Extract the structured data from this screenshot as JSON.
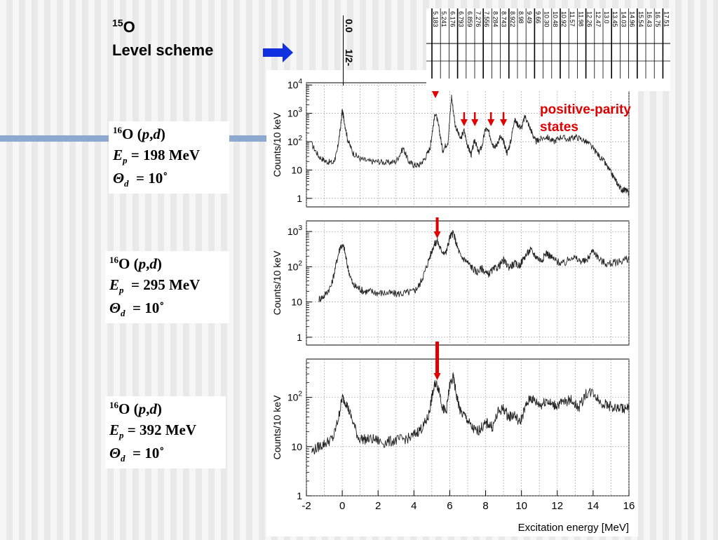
{
  "heading": {
    "nucleus_mass": "15",
    "nucleus_symbol": "O",
    "subtitle": "Level scheme"
  },
  "level_scheme": {
    "ground_energy": "0.0",
    "ground_spin": "1/2-",
    "level_energies": [
      "5.183",
      "5.241",
      "6.176",
      "6.793",
      "6.859",
      "7.276",
      "7.556",
      "8.284",
      "8.743",
      "8.922",
      "8.98",
      "9.49",
      "9.66",
      "10.30",
      "10.48",
      "10.92",
      "11.57",
      "11.98",
      "12.26",
      "12.47",
      "13.0",
      "13.45",
      "14.03",
      "14.96",
      "15.54",
      "16.43",
      "16.75",
      "17.51"
    ]
  },
  "annotation": {
    "line1": "positive-parity",
    "line2": "states"
  },
  "reactions": [
    {
      "mass": "16",
      "target": "O",
      "reaction_p": "p",
      "reaction_d": "d",
      "e_label": "E",
      "e_sub": "p",
      "e_value": "= 198 MeV",
      "theta_label": "Θ",
      "theta_sub": "d",
      "theta_value": "= 10˚"
    },
    {
      "mass": "16",
      "target": "O",
      "reaction_p": "p",
      "reaction_d": "d",
      "e_label": "E",
      "e_sub": "p",
      "e_value": "= 295 MeV",
      "theta_label": "Θ",
      "theta_sub": "d",
      "theta_value": "= 10˚"
    },
    {
      "mass": "16",
      "target": "O",
      "reaction_p": "p",
      "reaction_d": "d",
      "e_label": "E",
      "e_sub": "p",
      "e_value": "= 392 MeV",
      "theta_label": "Θ",
      "theta_sub": "d",
      "theta_value": "= 10˚"
    }
  ],
  "colors": {
    "arrow_blue": "#1030e0",
    "arrow_red": "#e00000",
    "stripe": "#8ea9cf"
  },
  "chart_data": [
    {
      "type": "line",
      "title": "",
      "xlabel": "",
      "ylabel": "Counts/10 keV",
      "xlim": [
        -2,
        16
      ],
      "ylim": [
        0.5,
        12000
      ],
      "yscale": "log",
      "ytick_labels": [
        "1",
        "10",
        "10^2",
        "10^3",
        "10^4"
      ],
      "grid": true,
      "arrows_x": [
        5.2,
        6.8,
        7.4,
        8.3,
        9.0
      ],
      "series": [
        {
          "x": [
            -1.7,
            -1.3,
            -0.9,
            -0.5,
            -0.3,
            -0.1,
            0.0,
            0.1,
            0.3,
            0.6,
            1.0,
            1.5,
            2.0,
            2.5,
            3.0,
            3.4,
            3.7,
            4.0,
            4.3,
            4.6,
            4.9,
            5.0,
            5.2,
            5.4,
            5.6,
            5.9,
            6.1,
            6.3,
            6.6,
            6.8,
            7.0,
            7.2,
            7.4,
            7.6,
            7.8,
            8.0,
            8.2,
            8.4,
            8.6,
            8.8,
            9.0,
            9.2,
            9.4,
            9.6,
            9.8,
            10.0,
            10.2,
            10.4,
            10.6,
            10.8,
            11.0,
            11.4,
            11.8,
            12.2,
            12.6,
            13.0,
            13.4,
            13.8,
            14.2,
            14.6,
            14.9,
            15.2,
            15.4,
            15.6,
            15.8,
            16.0
          ],
          "y": [
            80,
            30,
            20,
            18,
            40,
            300,
            1300,
            600,
            120,
            40,
            25,
            20,
            20,
            18,
            20,
            60,
            20,
            15,
            15,
            25,
            60,
            180,
            1100,
            300,
            50,
            100,
            4000,
            400,
            120,
            250,
            70,
            35,
            120,
            40,
            70,
            300,
            200,
            80,
            70,
            150,
            100,
            40,
            100,
            600,
            400,
            300,
            800,
            400,
            200,
            100,
            120,
            150,
            100,
            150,
            120,
            150,
            120,
            80,
            40,
            20,
            10,
            5,
            3,
            2,
            2,
            1.5
          ]
        }
      ]
    },
    {
      "type": "line",
      "title": "",
      "xlabel": "",
      "ylabel": "Counts/10 keV",
      "xlim": [
        -2,
        16
      ],
      "ylim": [
        0.6,
        2000
      ],
      "yscale": "log",
      "ytick_labels": [
        "1",
        "10",
        "10^2",
        "10^3"
      ],
      "grid": true,
      "arrows_x": [
        5.3
      ],
      "series": [
        {
          "x": [
            -1.3,
            -1.0,
            -0.6,
            -0.3,
            -0.1,
            0.1,
            0.3,
            0.6,
            0.9,
            1.2,
            1.6,
            2.0,
            2.5,
            3.0,
            3.5,
            4.0,
            4.3,
            4.6,
            4.9,
            5.1,
            5.3,
            5.5,
            5.8,
            6.0,
            6.2,
            6.4,
            6.6,
            6.9,
            7.2,
            7.5,
            7.8,
            8.1,
            8.4,
            8.7,
            9.0,
            9.3,
            9.6,
            9.9,
            10.2,
            10.5,
            10.8,
            11.1,
            11.4,
            11.7,
            12.0,
            12.4,
            12.8,
            13.2,
            13.6,
            14.0,
            14.4,
            14.8,
            15.2,
            15.6,
            16.0
          ],
          "y": [
            12,
            15,
            30,
            150,
            400,
            350,
            100,
            30,
            25,
            20,
            20,
            18,
            18,
            17,
            18,
            20,
            30,
            70,
            200,
            400,
            550,
            300,
            250,
            700,
            900,
            400,
            200,
            150,
            100,
            70,
            90,
            60,
            80,
            100,
            150,
            100,
            120,
            110,
            200,
            300,
            200,
            150,
            250,
            180,
            140,
            120,
            200,
            150,
            140,
            300,
            150,
            120,
            130,
            150,
            170
          ]
        }
      ]
    },
    {
      "type": "line",
      "title": "",
      "xlabel": "Excitation energy  [MeV]",
      "ylabel": "Counts/10 keV",
      "xlim": [
        -2,
        16
      ],
      "ylim": [
        1,
        600
      ],
      "yscale": "log",
      "ytick_labels": [
        "1",
        "10",
        "10^2"
      ],
      "xtick_labels": [
        "-2",
        "0",
        "2",
        "4",
        "6",
        "8",
        "10",
        "12",
        "14",
        "16"
      ],
      "grid": true,
      "arrows_x": [
        5.3
      ],
      "series": [
        {
          "x": [
            -1.7,
            -1.3,
            -0.9,
            -0.5,
            -0.2,
            0.0,
            0.2,
            0.5,
            0.9,
            1.3,
            1.8,
            2.3,
            2.8,
            3.3,
            3.8,
            4.2,
            4.5,
            4.8,
            5.0,
            5.2,
            5.4,
            5.6,
            5.8,
            6.0,
            6.2,
            6.4,
            6.6,
            6.9,
            7.2,
            7.5,
            7.8,
            8.1,
            8.4,
            8.7,
            9.0,
            9.3,
            9.6,
            9.9,
            10.2,
            10.5,
            10.8,
            11.1,
            11.4,
            11.7,
            12.0,
            12.4,
            12.8,
            13.2,
            13.6,
            14.0,
            14.4,
            14.8,
            15.2,
            15.6,
            16.0
          ],
          "y": [
            8,
            10,
            12,
            15,
            40,
            100,
            80,
            40,
            15,
            14,
            14,
            12,
            13,
            14,
            15,
            20,
            25,
            40,
            100,
            200,
            150,
            60,
            50,
            180,
            250,
            100,
            50,
            40,
            25,
            20,
            25,
            30,
            25,
            50,
            60,
            40,
            45,
            30,
            60,
            100,
            80,
            70,
            90,
            70,
            70,
            80,
            90,
            60,
            120,
            130,
            80,
            70,
            60,
            60,
            60
          ]
        }
      ]
    }
  ]
}
